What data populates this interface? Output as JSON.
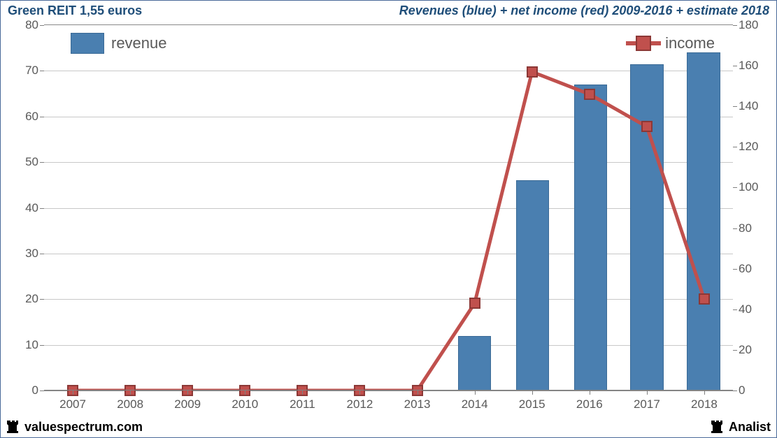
{
  "title_left": "Green REIT 1,55 euros",
  "title_right": "Revenues (blue) + net income (red) 2009-2016 + estimate 2018",
  "footer_left": "valuespectrum.com",
  "footer_right": "Analist",
  "legend": {
    "revenue": "revenue",
    "income": "income"
  },
  "chart": {
    "type": "bar+line",
    "background_color": "#ffffff",
    "grid_color": "#c8c8c8",
    "axis_color": "#808080",
    "tick_font_size": 17,
    "tick_color": "#595959",
    "legend_font_size": 22,
    "categories": [
      "2007",
      "2008",
      "2009",
      "2010",
      "2011",
      "2012",
      "2013",
      "2014",
      "2015",
      "2016",
      "2017",
      "2018"
    ],
    "left_axis": {
      "min": 0,
      "max": 80,
      "step": 10
    },
    "right_axis": {
      "min": 0,
      "max": 180,
      "step": 20
    },
    "revenue": {
      "color": "#4a7fb0",
      "border_color": "#3a6a96",
      "bar_width_ratio": 0.58,
      "values": [
        0,
        0,
        0,
        0,
        0,
        0,
        0,
        12,
        46,
        67,
        71.5,
        74
      ]
    },
    "income": {
      "color": "#c0504d",
      "border_color": "#8c3836",
      "line_width": 5,
      "marker_size": 16,
      "values": [
        0,
        0,
        0,
        0,
        0,
        0,
        0,
        43,
        157,
        146,
        130,
        45
      ]
    },
    "bar_0_offset": 0,
    "bar_inner_offsets": {
      "2015": 0.01,
      "2016": 0.02,
      "2018": -0.015
    }
  }
}
